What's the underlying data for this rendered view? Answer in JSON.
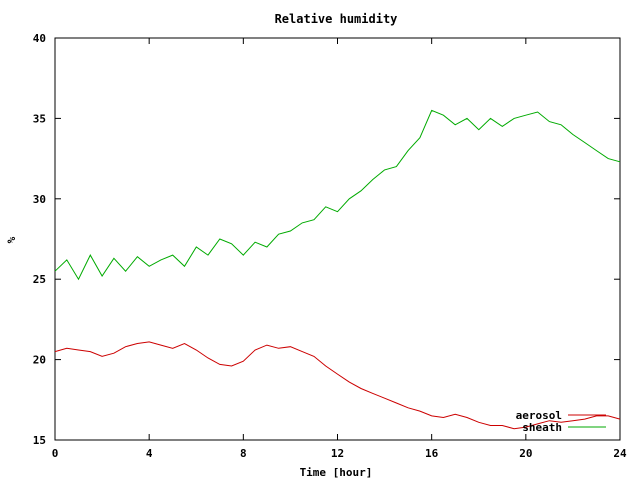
{
  "chart_data": {
    "type": "line",
    "title": "Relative humidity",
    "xlabel": "Time [hour]",
    "ylabel": "%",
    "xlim": [
      0,
      24
    ],
    "ylim": [
      15,
      40
    ],
    "xticks": [
      0,
      4,
      8,
      12,
      16,
      20,
      24
    ],
    "yticks": [
      15,
      20,
      25,
      30,
      35,
      40
    ],
    "grid": false,
    "legend_position": "bottom-right",
    "series": [
      {
        "name": "aerosol",
        "color": "#cc0000",
        "x": [
          0,
          0.5,
          1,
          1.5,
          2,
          2.5,
          3,
          3.5,
          4,
          4.5,
          5,
          5.5,
          6,
          6.5,
          7,
          7.5,
          8,
          8.5,
          9,
          9.5,
          10,
          10.5,
          11,
          11.5,
          12,
          12.5,
          13,
          13.5,
          14,
          14.5,
          15,
          15.5,
          16,
          16.5,
          17,
          17.5,
          18,
          18.5,
          19,
          19.5,
          20,
          20.5,
          21,
          21.5,
          22,
          22.5,
          23,
          23.5,
          24
        ],
        "y": [
          20.5,
          20.7,
          20.6,
          20.5,
          20.2,
          20.4,
          20.8,
          21.0,
          21.1,
          20.9,
          20.7,
          21.0,
          20.6,
          20.1,
          19.7,
          19.6,
          19.9,
          20.6,
          20.9,
          20.7,
          20.8,
          20.5,
          20.2,
          19.6,
          19.1,
          18.6,
          18.2,
          17.9,
          17.6,
          17.3,
          17.0,
          16.8,
          16.5,
          16.4,
          16.6,
          16.4,
          16.1,
          15.9,
          15.9,
          15.7,
          15.8,
          16.0,
          16.2,
          16.1,
          16.2,
          16.3,
          16.5,
          16.5,
          16.3
        ]
      },
      {
        "name": "sheath",
        "color": "#00aa00",
        "x": [
          0,
          0.5,
          1,
          1.5,
          2,
          2.5,
          3,
          3.5,
          4,
          4.5,
          5,
          5.5,
          6,
          6.5,
          7,
          7.5,
          8,
          8.5,
          9,
          9.5,
          10,
          10.5,
          11,
          11.5,
          12,
          12.5,
          13,
          13.5,
          14,
          14.5,
          15,
          15.5,
          16,
          16.5,
          17,
          17.5,
          18,
          18.5,
          19,
          19.5,
          20,
          20.5,
          21,
          21.5,
          22,
          22.5,
          23,
          23.5,
          24
        ],
        "y": [
          25.5,
          26.2,
          25.0,
          26.5,
          25.2,
          26.3,
          25.5,
          26.4,
          25.8,
          26.2,
          26.5,
          25.8,
          27.0,
          26.5,
          27.5,
          27.2,
          26.5,
          27.3,
          27.0,
          27.8,
          28.0,
          28.5,
          28.7,
          29.5,
          29.2,
          30.0,
          30.5,
          31.2,
          31.8,
          32.0,
          33.0,
          33.8,
          35.5,
          35.2,
          34.6,
          35.0,
          34.3,
          35.0,
          34.5,
          35.0,
          35.2,
          35.4,
          34.8,
          34.6,
          34.0,
          33.5,
          33.0,
          32.5,
          32.3
        ]
      }
    ]
  }
}
